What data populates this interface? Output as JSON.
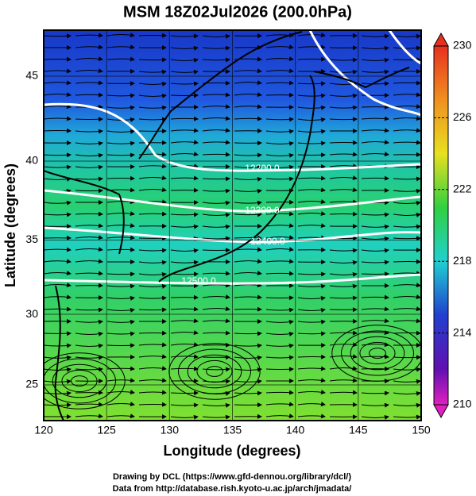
{
  "title": "MSM 18Z02Jul2026 (200.0hPa)",
  "x_axis": {
    "label": "Longitude (degrees)",
    "ticks": [
      120,
      125,
      130,
      135,
      140,
      145,
      150
    ]
  },
  "y_axis": {
    "label": "Latitude  (degrees)",
    "ticks": [
      25,
      30,
      35,
      40,
      45
    ]
  },
  "colorbar": {
    "ticks": [
      210,
      214,
      218,
      222,
      226,
      230
    ]
  },
  "contour_labels": [
    "12200.0",
    "12300.0",
    "12400.0",
    "12500.0"
  ],
  "credits": [
    "Drawing by DCL (https://www.gfd-dennou.org/library/dcl/)",
    "Data from http://database.rish.kyoto-u.ac.jp/arch/jmadata/"
  ]
}
